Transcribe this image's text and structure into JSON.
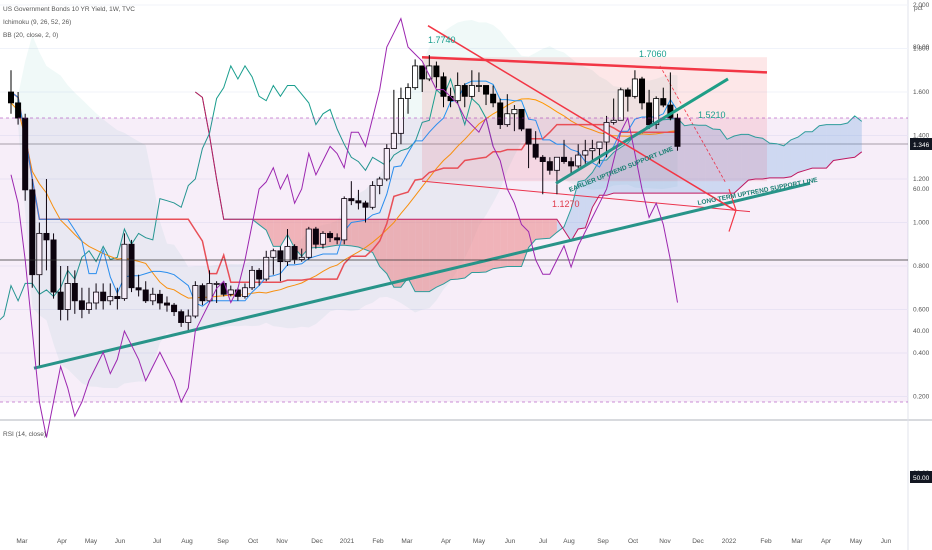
{
  "legend": {
    "symbol": "US Government Bonds 10 YR Yield, 1W, TVC",
    "ichimoku": "Ichimoku (9, 26, 52, 26)",
    "bb": "BB (20, close, 2, 0)",
    "rsi": "RSI (14, close)"
  },
  "price_axis": {
    "unit": "pct",
    "last_price": "1.346"
  },
  "rsi_axis": {
    "marker": "50.00"
  },
  "annotations": {
    "high1": "1.7740",
    "high2": "1.7060",
    "low1": "1.1270",
    "level": "1.5210",
    "earlier_line": "EARLIER UPTREND SUPPORT LINE",
    "long_line": "LONG TERM UPTREND SUPPORT LINE"
  },
  "colors": {
    "up": "#ffffff",
    "down": "#000000",
    "tenkan": "#2196f3",
    "kijun": "#ef5350",
    "chikou": "#1a9e8e",
    "bb_mid": "#ff9800",
    "rsi": "#9c27b0",
    "trend": "#1f9e86",
    "channel": "#f23645"
  },
  "chart_data": [
    {
      "type": "candlestick",
      "title": "US Government Bonds 10 YR Yield, 1W, TVC",
      "ylabel": "pct",
      "ylim": [
        0.1,
        2.15
      ],
      "y_ticks": [
        "2.000",
        "1.800",
        "1.600",
        "1.400",
        "1.200",
        "1.000",
        "0.800",
        "0.600",
        "0.400",
        "0.200"
      ],
      "x_ticks": [
        "Mar",
        "Apr",
        "May",
        "Jun",
        "Jul",
        "Aug",
        "Sep",
        "Oct",
        "Nov",
        "Dec",
        "2021",
        "Feb",
        "Mar",
        "Apr",
        "May",
        "Jun",
        "Jul",
        "Aug",
        "Sep",
        "Oct",
        "Nov",
        "Dec",
        "2022",
        "Feb",
        "Mar",
        "Apr",
        "May",
        "Jun"
      ],
      "last_price": 1.346,
      "candles": [
        {
          "date": "2020-02-10",
          "o": 1.6,
          "h": 1.7,
          "l": 1.5,
          "c": 1.55
        },
        {
          "date": "2020-02-17",
          "o": 1.55,
          "h": 1.6,
          "l": 1.45,
          "c": 1.48
        },
        {
          "date": "2020-02-24",
          "o": 1.48,
          "h": 1.5,
          "l": 1.1,
          "c": 1.15
        },
        {
          "date": "2020-03-02",
          "o": 1.15,
          "h": 1.2,
          "l": 0.7,
          "c": 0.76
        },
        {
          "date": "2020-03-09",
          "o": 0.76,
          "h": 1.0,
          "l": 0.33,
          "c": 0.95
        },
        {
          "date": "2020-03-16",
          "o": 0.95,
          "h": 1.2,
          "l": 0.78,
          "c": 0.92
        },
        {
          "date": "2020-03-23",
          "o": 0.92,
          "h": 0.95,
          "l": 0.65,
          "c": 0.68
        },
        {
          "date": "2020-03-30",
          "o": 0.68,
          "h": 0.8,
          "l": 0.55,
          "c": 0.6
        },
        {
          "date": "2020-04-06",
          "o": 0.6,
          "h": 0.8,
          "l": 0.55,
          "c": 0.72
        },
        {
          "date": "2020-04-13",
          "o": 0.72,
          "h": 0.78,
          "l": 0.58,
          "c": 0.64
        },
        {
          "date": "2020-04-20",
          "o": 0.64,
          "h": 0.7,
          "l": 0.56,
          "c": 0.6
        },
        {
          "date": "2020-04-27",
          "o": 0.6,
          "h": 0.7,
          "l": 0.58,
          "c": 0.63
        },
        {
          "date": "2020-05-04",
          "o": 0.63,
          "h": 0.72,
          "l": 0.6,
          "c": 0.68
        },
        {
          "date": "2020-05-11",
          "o": 0.68,
          "h": 0.72,
          "l": 0.6,
          "c": 0.64
        },
        {
          "date": "2020-05-18",
          "o": 0.64,
          "h": 0.72,
          "l": 0.62,
          "c": 0.66
        },
        {
          "date": "2020-05-25",
          "o": 0.66,
          "h": 0.7,
          "l": 0.6,
          "c": 0.65
        },
        {
          "date": "2020-06-01",
          "o": 0.65,
          "h": 0.95,
          "l": 0.64,
          "c": 0.9
        },
        {
          "date": "2020-06-08",
          "o": 0.9,
          "h": 0.92,
          "l": 0.68,
          "c": 0.7
        },
        {
          "date": "2020-06-15",
          "o": 0.7,
          "h": 0.76,
          "l": 0.66,
          "c": 0.69
        },
        {
          "date": "2020-06-22",
          "o": 0.69,
          "h": 0.73,
          "l": 0.63,
          "c": 0.64
        },
        {
          "date": "2020-06-29",
          "o": 0.64,
          "h": 0.7,
          "l": 0.62,
          "c": 0.67
        },
        {
          "date": "2020-07-06",
          "o": 0.67,
          "h": 0.69,
          "l": 0.6,
          "c": 0.63
        },
        {
          "date": "2020-07-13",
          "o": 0.63,
          "h": 0.66,
          "l": 0.59,
          "c": 0.62
        },
        {
          "date": "2020-07-20",
          "o": 0.62,
          "h": 0.63,
          "l": 0.57,
          "c": 0.59
        },
        {
          "date": "2020-07-27",
          "o": 0.59,
          "h": 0.6,
          "l": 0.52,
          "c": 0.54
        },
        {
          "date": "2020-08-03",
          "o": 0.54,
          "h": 0.6,
          "l": 0.5,
          "c": 0.57
        },
        {
          "date": "2020-08-10",
          "o": 0.57,
          "h": 0.73,
          "l": 0.56,
          "c": 0.71
        },
        {
          "date": "2020-08-17",
          "o": 0.71,
          "h": 0.72,
          "l": 0.62,
          "c": 0.64
        },
        {
          "date": "2020-08-24",
          "o": 0.64,
          "h": 0.78,
          "l": 0.63,
          "c": 0.72
        },
        {
          "date": "2020-08-31",
          "o": 0.72,
          "h": 0.73,
          "l": 0.63,
          "c": 0.72
        },
        {
          "date": "2020-09-07",
          "o": 0.72,
          "h": 0.73,
          "l": 0.66,
          "c": 0.67
        },
        {
          "date": "2020-09-14",
          "o": 0.67,
          "h": 0.71,
          "l": 0.66,
          "c": 0.69
        },
        {
          "date": "2020-09-21",
          "o": 0.69,
          "h": 0.7,
          "l": 0.64,
          "c": 0.66
        },
        {
          "date": "2020-09-28",
          "o": 0.66,
          "h": 0.72,
          "l": 0.65,
          "c": 0.7
        },
        {
          "date": "2020-10-05",
          "o": 0.7,
          "h": 0.8,
          "l": 0.69,
          "c": 0.78
        },
        {
          "date": "2020-10-12",
          "o": 0.78,
          "h": 0.79,
          "l": 0.71,
          "c": 0.74
        },
        {
          "date": "2020-10-19",
          "o": 0.74,
          "h": 0.87,
          "l": 0.73,
          "c": 0.84
        },
        {
          "date": "2020-10-26",
          "o": 0.84,
          "h": 0.88,
          "l": 0.76,
          "c": 0.87
        },
        {
          "date": "2020-11-02",
          "o": 0.87,
          "h": 0.89,
          "l": 0.73,
          "c": 0.82
        },
        {
          "date": "2020-11-09",
          "o": 0.82,
          "h": 0.97,
          "l": 0.8,
          "c": 0.89
        },
        {
          "date": "2020-11-16",
          "o": 0.89,
          "h": 0.9,
          "l": 0.81,
          "c": 0.83
        },
        {
          "date": "2020-11-23",
          "o": 0.83,
          "h": 0.88,
          "l": 0.82,
          "c": 0.84
        },
        {
          "date": "2020-11-30",
          "o": 0.84,
          "h": 0.98,
          "l": 0.83,
          "c": 0.97
        },
        {
          "date": "2020-12-07",
          "o": 0.97,
          "h": 0.98,
          "l": 0.88,
          "c": 0.9
        },
        {
          "date": "2020-12-14",
          "o": 0.9,
          "h": 0.96,
          "l": 0.88,
          "c": 0.95
        },
        {
          "date": "2020-12-21",
          "o": 0.95,
          "h": 0.96,
          "l": 0.91,
          "c": 0.93
        },
        {
          "date": "2020-12-28",
          "o": 0.93,
          "h": 0.95,
          "l": 0.9,
          "c": 0.92
        },
        {
          "date": "2021-01-04",
          "o": 0.92,
          "h": 1.12,
          "l": 0.9,
          "c": 1.11
        },
        {
          "date": "2021-01-11",
          "o": 1.11,
          "h": 1.19,
          "l": 1.08,
          "c": 1.1
        },
        {
          "date": "2021-01-18",
          "o": 1.1,
          "h": 1.15,
          "l": 1.06,
          "c": 1.09
        },
        {
          "date": "2021-01-25",
          "o": 1.09,
          "h": 1.1,
          "l": 1.0,
          "c": 1.07
        },
        {
          "date": "2021-02-01",
          "o": 1.07,
          "h": 1.19,
          "l": 1.06,
          "c": 1.17
        },
        {
          "date": "2021-02-08",
          "o": 1.17,
          "h": 1.21,
          "l": 1.13,
          "c": 1.2
        },
        {
          "date": "2021-02-15",
          "o": 1.2,
          "h": 1.36,
          "l": 1.19,
          "c": 1.34
        },
        {
          "date": "2021-02-22",
          "o": 1.34,
          "h": 1.61,
          "l": 1.34,
          "c": 1.41
        },
        {
          "date": "2021-03-01",
          "o": 1.41,
          "h": 1.62,
          "l": 1.36,
          "c": 1.57
        },
        {
          "date": "2021-03-08",
          "o": 1.57,
          "h": 1.64,
          "l": 1.5,
          "c": 1.62
        },
        {
          "date": "2021-03-15",
          "o": 1.62,
          "h": 1.75,
          "l": 1.61,
          "c": 1.72
        },
        {
          "date": "2021-03-22",
          "o": 1.72,
          "h": 1.72,
          "l": 1.6,
          "c": 1.66
        },
        {
          "date": "2021-03-29",
          "o": 1.66,
          "h": 1.77,
          "l": 1.65,
          "c": 1.72
        },
        {
          "date": "2021-04-05",
          "o": 1.72,
          "h": 1.74,
          "l": 1.62,
          "c": 1.67
        },
        {
          "date": "2021-04-12",
          "o": 1.67,
          "h": 1.69,
          "l": 1.53,
          "c": 1.58
        },
        {
          "date": "2021-04-19",
          "o": 1.58,
          "h": 1.62,
          "l": 1.53,
          "c": 1.56
        },
        {
          "date": "2021-04-26",
          "o": 1.56,
          "h": 1.69,
          "l": 1.55,
          "c": 1.63
        },
        {
          "date": "2021-05-03",
          "o": 1.63,
          "h": 1.64,
          "l": 1.53,
          "c": 1.58
        },
        {
          "date": "2021-05-10",
          "o": 1.58,
          "h": 1.7,
          "l": 1.57,
          "c": 1.63
        },
        {
          "date": "2021-05-17",
          "o": 1.63,
          "h": 1.69,
          "l": 1.6,
          "c": 1.63
        },
        {
          "date": "2021-05-24",
          "o": 1.63,
          "h": 1.63,
          "l": 1.54,
          "c": 1.59
        },
        {
          "date": "2021-05-31",
          "o": 1.59,
          "h": 1.63,
          "l": 1.53,
          "c": 1.55
        },
        {
          "date": "2021-06-07",
          "o": 1.55,
          "h": 1.57,
          "l": 1.43,
          "c": 1.45
        },
        {
          "date": "2021-06-14",
          "o": 1.45,
          "h": 1.59,
          "l": 1.44,
          "c": 1.5
        },
        {
          "date": "2021-06-21",
          "o": 1.5,
          "h": 1.54,
          "l": 1.42,
          "c": 1.52
        },
        {
          "date": "2021-06-28",
          "o": 1.52,
          "h": 1.52,
          "l": 1.42,
          "c": 1.43
        },
        {
          "date": "2021-07-05",
          "o": 1.43,
          "h": 1.43,
          "l": 1.25,
          "c": 1.36
        },
        {
          "date": "2021-07-12",
          "o": 1.36,
          "h": 1.42,
          "l": 1.29,
          "c": 1.3
        },
        {
          "date": "2021-07-19",
          "o": 1.3,
          "h": 1.31,
          "l": 1.13,
          "c": 1.28
        },
        {
          "date": "2021-07-26",
          "o": 1.28,
          "h": 1.3,
          "l": 1.22,
          "c": 1.24
        },
        {
          "date": "2021-08-02",
          "o": 1.24,
          "h": 1.3,
          "l": 1.13,
          "c": 1.3
        },
        {
          "date": "2021-08-09",
          "o": 1.3,
          "h": 1.38,
          "l": 1.27,
          "c": 1.28
        },
        {
          "date": "2021-08-16",
          "o": 1.28,
          "h": 1.3,
          "l": 1.22,
          "c": 1.26
        },
        {
          "date": "2021-08-23",
          "o": 1.26,
          "h": 1.36,
          "l": 1.25,
          "c": 1.31
        },
        {
          "date": "2021-08-30",
          "o": 1.31,
          "h": 1.38,
          "l": 1.27,
          "c": 1.33
        },
        {
          "date": "2021-09-06",
          "o": 1.33,
          "h": 1.38,
          "l": 1.28,
          "c": 1.34
        },
        {
          "date": "2021-09-13",
          "o": 1.34,
          "h": 1.37,
          "l": 1.27,
          "c": 1.37
        },
        {
          "date": "2021-09-20",
          "o": 1.37,
          "h": 1.49,
          "l": 1.3,
          "c": 1.46
        },
        {
          "date": "2021-09-27",
          "o": 1.46,
          "h": 1.57,
          "l": 1.45,
          "c": 1.47
        },
        {
          "date": "2021-10-04",
          "o": 1.47,
          "h": 1.62,
          "l": 1.47,
          "c": 1.61
        },
        {
          "date": "2021-10-11",
          "o": 1.61,
          "h": 1.62,
          "l": 1.51,
          "c": 1.58
        },
        {
          "date": "2021-10-18",
          "o": 1.58,
          "h": 1.7,
          "l": 1.57,
          "c": 1.66
        },
        {
          "date": "2021-10-25",
          "o": 1.66,
          "h": 1.67,
          "l": 1.52,
          "c": 1.55
        },
        {
          "date": "2021-11-01",
          "o": 1.55,
          "h": 1.61,
          "l": 1.43,
          "c": 1.45
        },
        {
          "date": "2021-11-08",
          "o": 1.45,
          "h": 1.58,
          "l": 1.43,
          "c": 1.57
        },
        {
          "date": "2021-11-15",
          "o": 1.57,
          "h": 1.62,
          "l": 1.53,
          "c": 1.54
        },
        {
          "date": "2021-11-22",
          "o": 1.54,
          "h": 1.69,
          "l": 1.47,
          "c": 1.48
        },
        {
          "date": "2021-11-29",
          "o": 1.48,
          "h": 1.5,
          "l": 1.33,
          "c": 1.35
        }
      ]
    },
    {
      "type": "line",
      "title": "RSI (14, close)",
      "ylim": [
        15,
        90
      ],
      "y_ticks": [
        "80.00",
        "60.00",
        "40.00",
        "20.00"
      ],
      "bands": [
        30,
        70
      ],
      "midline": 50,
      "series": [
        {
          "name": "RSI (14, close)",
          "values": [
            62,
            58,
            50,
            40,
            30,
            25,
            30,
            35,
            32,
            28,
            30,
            33,
            35,
            37,
            34,
            36,
            40,
            38,
            36,
            33,
            35,
            37,
            35,
            33,
            30,
            32,
            40,
            42,
            44,
            46,
            47,
            44,
            46,
            50,
            55,
            60,
            61,
            63,
            60,
            62,
            58,
            60,
            65,
            62,
            64,
            66,
            65,
            63,
            68,
            68,
            66,
            70,
            74,
            80,
            82,
            84,
            80,
            79,
            78,
            76,
            74,
            74,
            73,
            72,
            70,
            69,
            68,
            70,
            66,
            64,
            60,
            58,
            55,
            54,
            50,
            48,
            48,
            50,
            52,
            49,
            52,
            54,
            56,
            58,
            60,
            64,
            68,
            70,
            65,
            60,
            56,
            58,
            55,
            50,
            44
          ]
        }
      ]
    }
  ]
}
